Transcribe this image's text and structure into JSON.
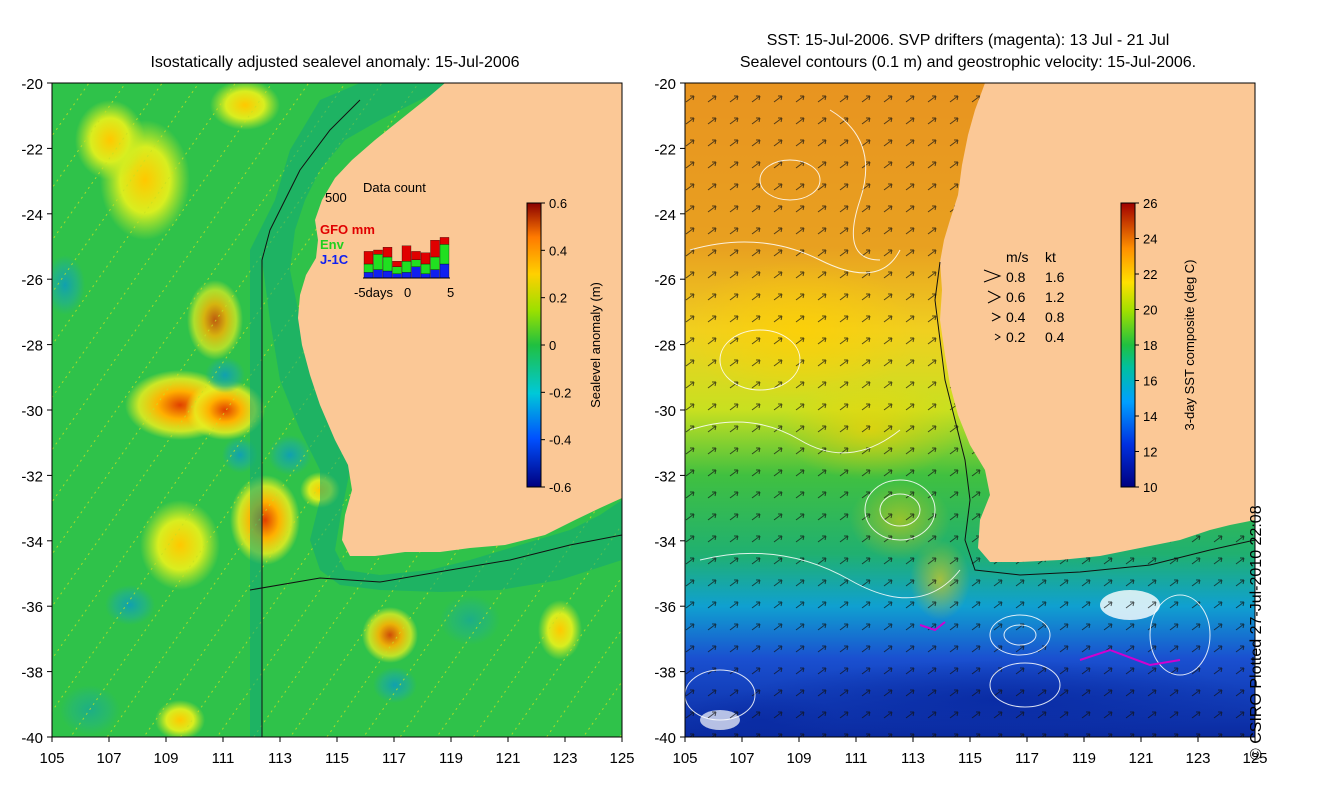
{
  "left_map": {
    "title": "Isostatically adjusted sealevel anomaly: 15-Jul-2006",
    "lon_ticks": [
      "105",
      "107",
      "109",
      "111",
      "113",
      "115",
      "117",
      "119",
      "121",
      "123",
      "125"
    ],
    "lat_ticks": [
      "-20",
      "-22",
      "-24",
      "-26",
      "-28",
      "-30",
      "-32",
      "-34",
      "-36",
      "-38",
      "-40"
    ],
    "colorbar": {
      "label": "Sealevel anomaly (m)",
      "ticks": [
        "0.6",
        "0.4",
        "0.2",
        "0",
        "-0.2",
        "-0.4",
        "-0.6"
      ]
    },
    "inset": {
      "title": "Data count",
      "ymax": "500",
      "legend": {
        "gfo": "GFO mm",
        "env": "Env",
        "j1c": "J-1C"
      },
      "x_labels": {
        "a": "-5days",
        "b": "0",
        "c": "5"
      },
      "bars": [
        {
          "gfo": 90,
          "env": 60,
          "j1c": 40
        },
        {
          "gfo": 30,
          "env": 110,
          "j1c": 60
        },
        {
          "gfo": 70,
          "env": 100,
          "j1c": 50
        },
        {
          "gfo": 40,
          "env": 50,
          "j1c": 30
        },
        {
          "gfo": 110,
          "env": 80,
          "j1c": 40
        },
        {
          "gfo": 60,
          "env": 50,
          "j1c": 80
        },
        {
          "gfo": 80,
          "env": 70,
          "j1c": 30
        },
        {
          "gfo": 120,
          "env": 90,
          "j1c": 60
        },
        {
          "gfo": 50,
          "env": 140,
          "j1c": 100
        }
      ]
    }
  },
  "right_map": {
    "title_line1": "SST: 15-Jul-2006. SVP drifters (magenta): 13 Jul - 21 Jul",
    "title_line2": "Sealevel contours (0.1 m) and geostrophic velocity: 15-Jul-2006.",
    "lon_ticks": [
      "105",
      "107",
      "109",
      "111",
      "113",
      "115",
      "117",
      "119",
      "121",
      "123",
      "125"
    ],
    "lat_ticks": [
      "-20",
      "-22",
      "-24",
      "-26",
      "-28",
      "-30",
      "-32",
      "-34",
      "-36",
      "-38",
      "-40"
    ],
    "colorbar": {
      "label": "3-day SST composite (deg C)",
      "ticks": [
        "26",
        "24",
        "22",
        "20",
        "18",
        "16",
        "14",
        "12",
        "10"
      ]
    },
    "velocity_legend": {
      "header_ms": "m/s",
      "header_kt": "kt",
      "rows": [
        {
          "ms": "0.8",
          "kt": "1.6"
        },
        {
          "ms": "0.6",
          "kt": "1.2"
        },
        {
          "ms": "0.4",
          "kt": "0.8"
        },
        {
          "ms": "0.2",
          "kt": "0.4"
        }
      ]
    }
  },
  "credit": "© CSIRO Plotted 27-Jul-2010 22:08",
  "colors": {
    "land": "#fbc896",
    "ssh_base": "#2fc24a",
    "sst_warm": "#e8950a",
    "sst_cold": "#1a4fd0"
  }
}
